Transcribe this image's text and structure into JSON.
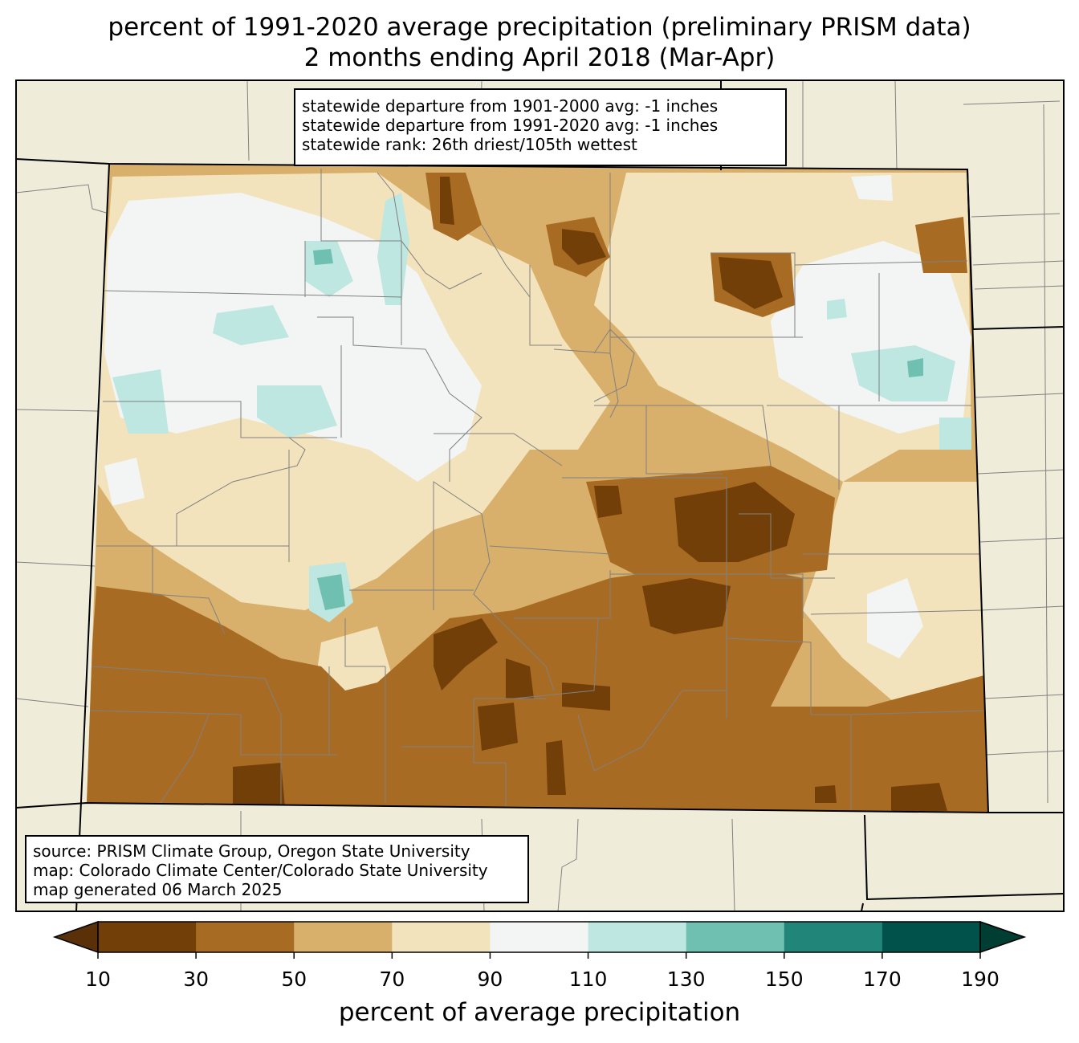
{
  "title_line1": "percent of 1991-2020 average precipitation (preliminary PRISM data)",
  "title_line2": "2 months ending April 2018 (Mar-Apr)",
  "stats": {
    "line1": "statewide departure from 1901-2000 avg: -1 inches",
    "line2": "statewide departure from 1991-2020 avg: -1 inches",
    "line3": "statewide rank: 26th driest/105th wettest"
  },
  "source": {
    "line1": "source: PRISM Climate Group, Oregon State University",
    "line2": "map: Colorado Climate Center/Colorado State University",
    "line3": "map generated 06 March 2025"
  },
  "colorbar": {
    "label": "percent of average precipitation",
    "ticks": [
      "10",
      "30",
      "50",
      "70",
      "90",
      "110",
      "130",
      "150",
      "170",
      "190"
    ],
    "colors": [
      "#733f08",
      "#a86b23",
      "#d8b06b",
      "#f3e3bc",
      "#f3f5f4",
      "#bde7e0",
      "#70c0b2",
      "#218679",
      "#01524a"
    ],
    "under_color": "#5a3008",
    "over_color": "#003d33"
  },
  "map_colors": {
    "land_background": "#efedd9",
    "border": "#000000",
    "county_lines": "#808080"
  }
}
